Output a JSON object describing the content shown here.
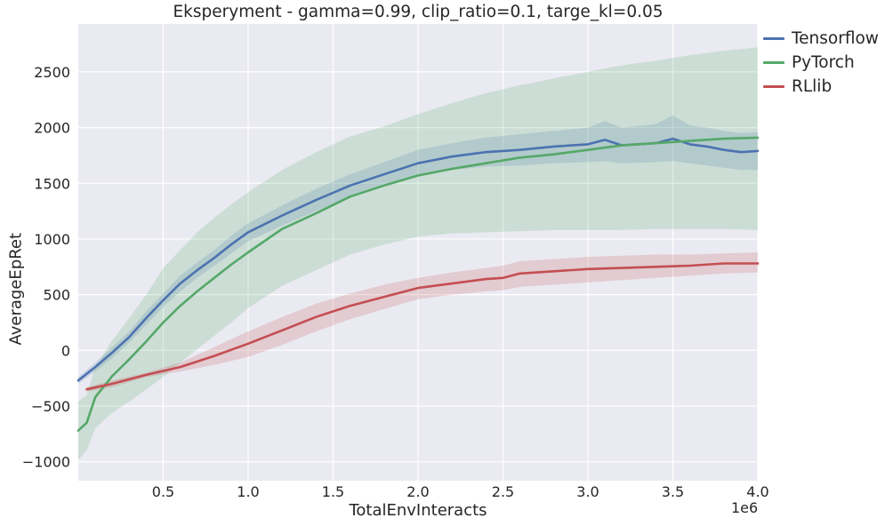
{
  "chart_data": {
    "type": "line",
    "title": "Eksperyment - gamma=0.99, clip_ratio=0.1, targe_kl=0.05",
    "xlabel": "TotalEnvInteracts",
    "ylabel": "AverageEpRet",
    "x_offset_text": "1e6",
    "xlim": [
      0,
      4.0
    ],
    "ylim": [
      -1170,
      2930
    ],
    "xticks": [
      0.5,
      1.0,
      1.5,
      2.0,
      2.5,
      3.0,
      3.5,
      4.0
    ],
    "xtick_labels": [
      "0.5",
      "1.0",
      "1.5",
      "2.0",
      "2.5",
      "3.0",
      "3.5",
      "4.0"
    ],
    "yticks": [
      -1000,
      -500,
      0,
      500,
      1000,
      1500,
      2000,
      2500
    ],
    "ytick_labels": [
      "−1000",
      "−500",
      "0",
      "500",
      "1000",
      "1500",
      "2000",
      "2500"
    ],
    "grid": true,
    "legend_position": "outside-top-right",
    "colors": {
      "background": "#eaeaf2",
      "grid": "#ffffff"
    },
    "series": [
      {
        "name": "Tensorflow",
        "color": "#4c72b0",
        "x": [
          0.0,
          0.1,
          0.2,
          0.3,
          0.4,
          0.5,
          0.6,
          0.7,
          0.8,
          0.9,
          1.0,
          1.2,
          1.4,
          1.6,
          1.8,
          2.0,
          2.2,
          2.4,
          2.6,
          2.8,
          3.0,
          3.1,
          3.2,
          3.4,
          3.5,
          3.6,
          3.7,
          3.8,
          3.9,
          4.0
        ],
        "y": [
          -270,
          -150,
          -20,
          120,
          290,
          450,
          600,
          720,
          830,
          950,
          1060,
          1210,
          1350,
          1480,
          1580,
          1680,
          1740,
          1780,
          1800,
          1830,
          1850,
          1890,
          1840,
          1860,
          1900,
          1850,
          1830,
          1800,
          1780,
          1790
        ],
        "lower": [
          -300,
          -190,
          -70,
          70,
          230,
          390,
          530,
          650,
          760,
          870,
          980,
          1120,
          1250,
          1380,
          1470,
          1560,
          1620,
          1650,
          1660,
          1680,
          1690,
          1700,
          1680,
          1690,
          1700,
          1680,
          1660,
          1640,
          1620,
          1620
        ],
        "upper": [
          -240,
          -110,
          30,
          170,
          350,
          510,
          670,
          790,
          900,
          1030,
          1140,
          1300,
          1450,
          1580,
          1690,
          1800,
          1860,
          1910,
          1940,
          1970,
          2000,
          2060,
          2000,
          2030,
          2110,
          2020,
          2000,
          1970,
          1950,
          1960
        ]
      },
      {
        "name": "PyTorch",
        "color": "#55a868",
        "x": [
          0.0,
          0.05,
          0.1,
          0.2,
          0.3,
          0.4,
          0.5,
          0.6,
          0.7,
          0.8,
          0.9,
          1.0,
          1.2,
          1.4,
          1.6,
          1.8,
          2.0,
          2.2,
          2.4,
          2.6,
          2.8,
          3.0,
          3.2,
          3.4,
          3.6,
          3.8,
          4.0
        ],
        "y": [
          -720,
          -650,
          -420,
          -230,
          -80,
          80,
          250,
          400,
          530,
          650,
          770,
          880,
          1090,
          1230,
          1380,
          1480,
          1570,
          1630,
          1680,
          1730,
          1760,
          1800,
          1840,
          1860,
          1880,
          1900,
          1910
        ],
        "lower": [
          -980,
          -900,
          -700,
          -560,
          -460,
          -350,
          -240,
          -110,
          10,
          130,
          250,
          380,
          580,
          720,
          860,
          950,
          1020,
          1050,
          1060,
          1070,
          1080,
          1080,
          1080,
          1090,
          1090,
          1090,
          1080
        ],
        "upper": [
          -460,
          -400,
          -150,
          90,
          290,
          500,
          740,
          900,
          1060,
          1190,
          1310,
          1420,
          1620,
          1780,
          1920,
          2010,
          2120,
          2220,
          2310,
          2380,
          2440,
          2500,
          2560,
          2600,
          2650,
          2690,
          2720
        ]
      },
      {
        "name": "RLlib",
        "color": "#c44e52",
        "x": [
          0.05,
          0.2,
          0.4,
          0.6,
          0.8,
          1.0,
          1.2,
          1.4,
          1.6,
          1.8,
          2.0,
          2.2,
          2.4,
          2.5,
          2.6,
          2.8,
          3.0,
          3.2,
          3.4,
          3.6,
          3.8,
          4.0
        ],
        "y": [
          -350,
          -300,
          -220,
          -150,
          -50,
          60,
          180,
          300,
          400,
          480,
          560,
          600,
          640,
          650,
          690,
          710,
          730,
          740,
          750,
          760,
          780,
          780
        ],
        "lower": [
          -370,
          -330,
          -240,
          -190,
          -130,
          -60,
          50,
          170,
          280,
          370,
          460,
          500,
          530,
          540,
          570,
          590,
          610,
          630,
          650,
          670,
          690,
          700
        ],
        "upper": [
          -330,
          -270,
          -200,
          -110,
          30,
          170,
          300,
          420,
          510,
          590,
          650,
          700,
          740,
          760,
          800,
          820,
          840,
          850,
          860,
          860,
          870,
          880
        ]
      }
    ]
  }
}
